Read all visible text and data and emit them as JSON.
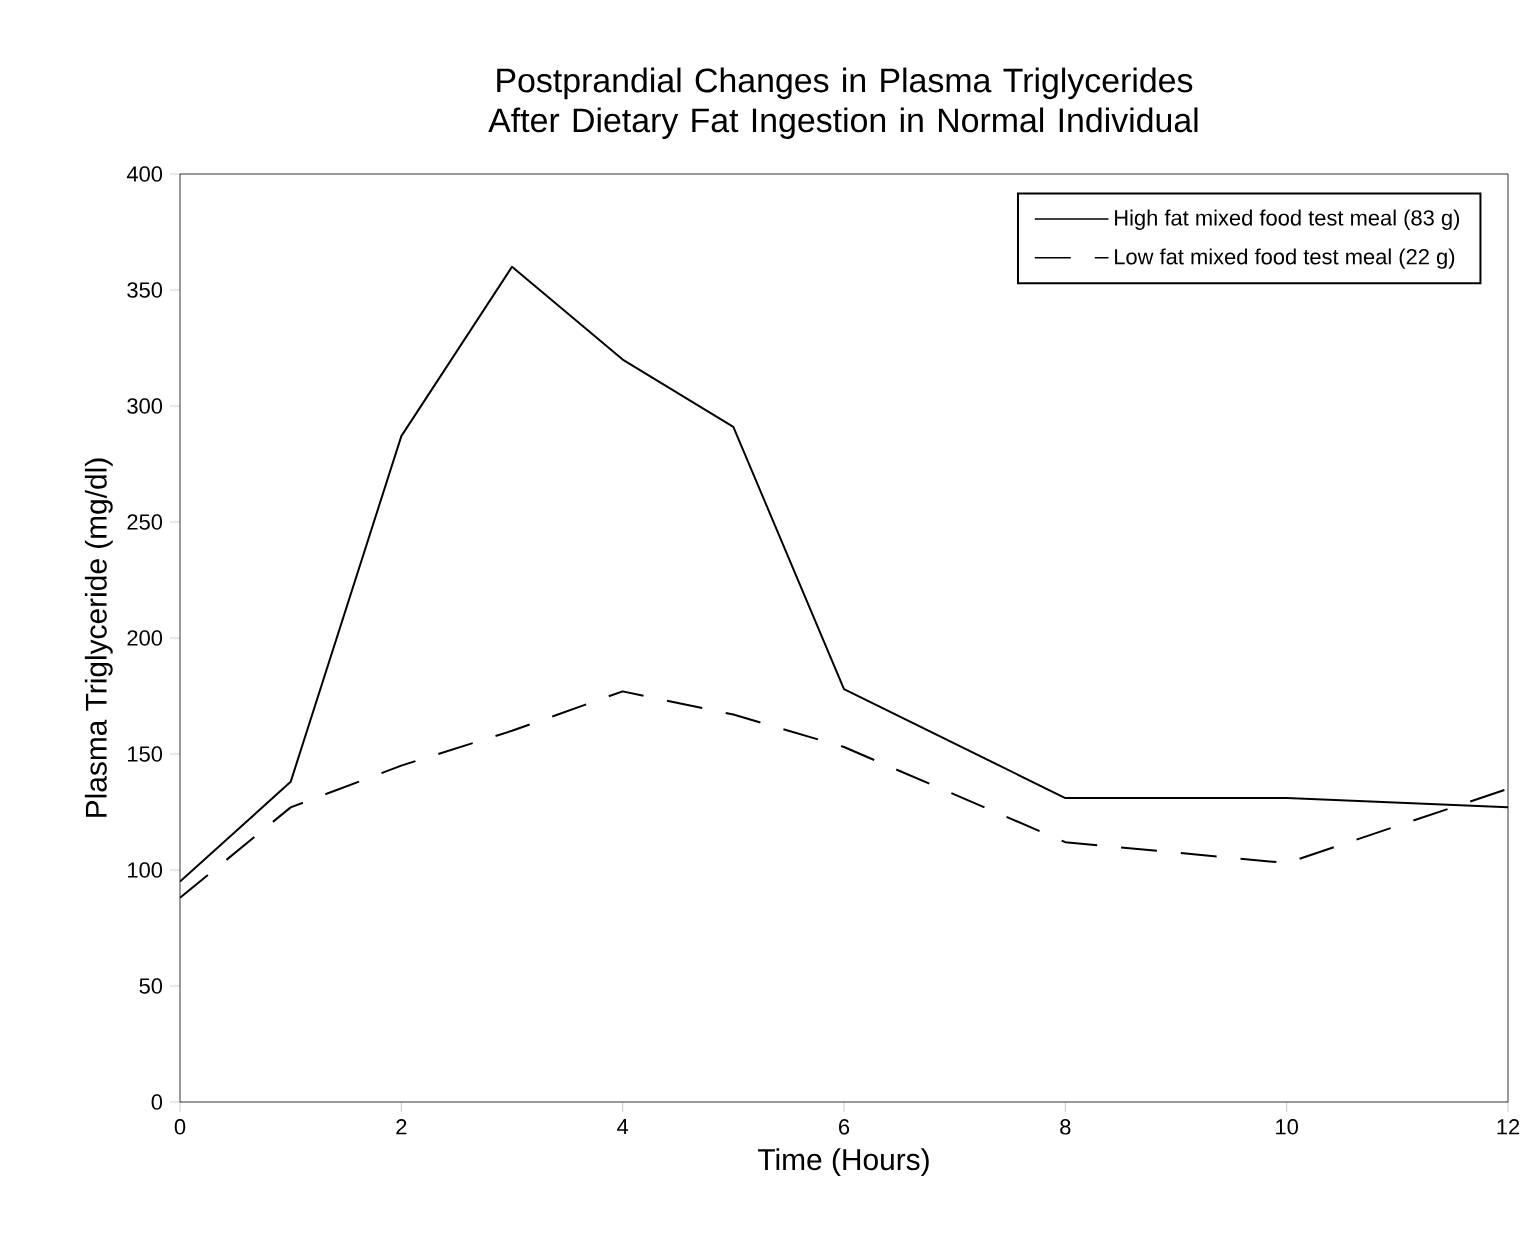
{
  "chart_data": {
    "type": "line",
    "title": "Postprandial Changes in Plasma Triglycerides After Dietary Fat Ingestion in Normal Individual",
    "xlabel": "Time (Hours)",
    "ylabel": "Plasma Triglyceride (mg/dl)",
    "x": [
      0,
      1,
      2,
      3,
      4,
      5,
      6,
      8,
      10,
      12
    ],
    "series": [
      {
        "name": "High fat mixed food test meal (83 g)",
        "color": "#000000",
        "line_style": "solid",
        "values": [
          95,
          138,
          287,
          360,
          320,
          291,
          178,
          131,
          131,
          127
        ]
      },
      {
        "name": "Low fat mixed food test meal (22 g)",
        "color": "#000000",
        "line_style": "dashed",
        "values": [
          88,
          127,
          145,
          160,
          177,
          167,
          153,
          112,
          103,
          135
        ]
      }
    ],
    "xlim": [
      0,
      12
    ],
    "xticks": [
      0,
      2,
      4,
      6,
      8,
      10,
      12
    ],
    "ylim": [
      0,
      400
    ],
    "yticks": [
      0,
      50,
      100,
      150,
      200,
      250,
      300,
      350,
      400
    ],
    "grid": false,
    "legend": "top right",
    "marker": "none"
  }
}
